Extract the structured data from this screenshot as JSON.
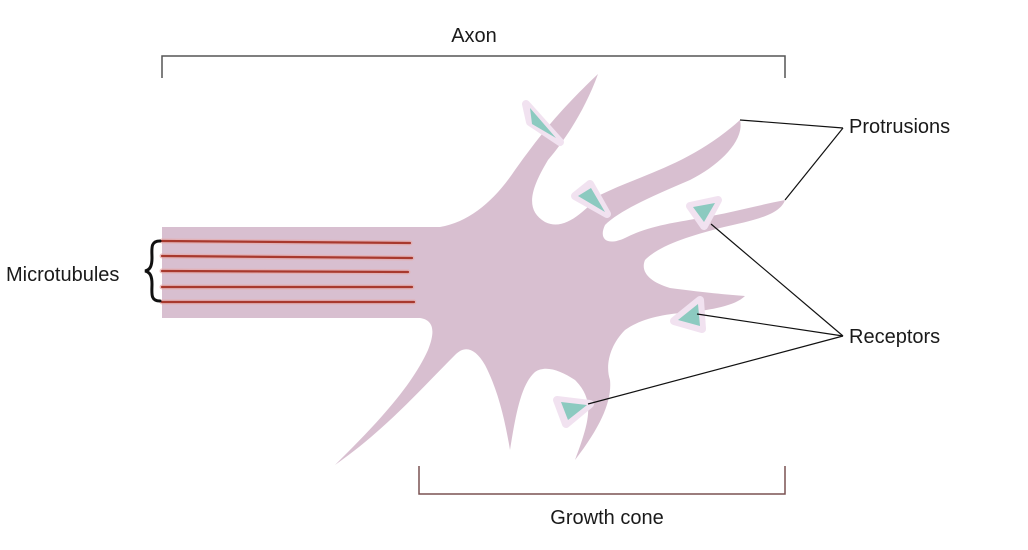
{
  "labels": {
    "axon": "Axon",
    "growth_cone": "Growth cone",
    "microtubules": "Microtubules",
    "protrusions": "Protrusions",
    "receptors": "Receptors"
  },
  "colors": {
    "cell_body": "#d8bfd0",
    "microtubule": "#a8392e",
    "microtubule_glow": "#e7a9a9",
    "receptor": "#8ccac0",
    "receptor_halo": "#f1e2f0",
    "bracket_axon": "#555555",
    "bracket_growth_cone": "#7a5252",
    "leader_line": "#111111"
  },
  "icons": {
    "receptor": "triangle-receptor-icon",
    "microtubule_brace": "curly-brace-icon"
  }
}
